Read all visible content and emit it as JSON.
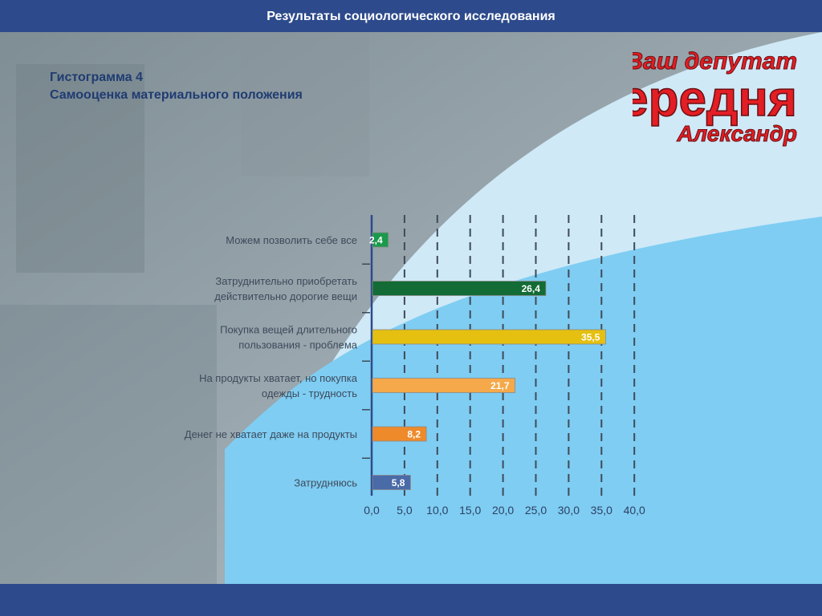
{
  "header": {
    "title": "Результаты социологического исследования"
  },
  "slide": {
    "title_line1": "Гистограмма 4",
    "title_line2": "Самооценка материального положения"
  },
  "logo": {
    "line1": "Ваш депутат",
    "line2": "Передня",
    "line3": "Александр"
  },
  "colors": {
    "bar_blue": "#2d4a8c",
    "logo_red": "#e31e24",
    "sky_light": "#cfe9f7",
    "sky_mid": "#7fcdf2"
  },
  "chart_data": {
    "type": "bar",
    "orientation": "horizontal",
    "categories": [
      [
        "Можем позволить себе все"
      ],
      [
        "Затруднительно приобретать",
        "действительно дорогие вещи"
      ],
      [
        "Покупка вещей длительного",
        "пользования - проблема"
      ],
      [
        "На продукты хватает, но покупка",
        "одежды - трудность"
      ],
      [
        "Денег не хватает даже на продукты"
      ],
      [
        "Затрудняюсь"
      ]
    ],
    "values": [
      2.4,
      26.4,
      35.5,
      21.7,
      8.2,
      5.8
    ],
    "value_labels": [
      "2,4",
      "26,4",
      "35,5",
      "21,7",
      "8,2",
      "5,8"
    ],
    "bar_colors": [
      "#1a9a4a",
      "#136b35",
      "#e5c010",
      "#f5a94a",
      "#ef8a2a",
      "#4a6aa8"
    ],
    "xlim": [
      0,
      40
    ],
    "ticks": [
      0,
      5,
      10,
      15,
      20,
      25,
      30,
      35,
      40
    ],
    "tick_labels": [
      "0,0",
      "5,0",
      "10,0",
      "15,0",
      "20,0",
      "25,0",
      "30,0",
      "35,0",
      "40,0"
    ],
    "grid": true,
    "grid_style": "dashed"
  }
}
